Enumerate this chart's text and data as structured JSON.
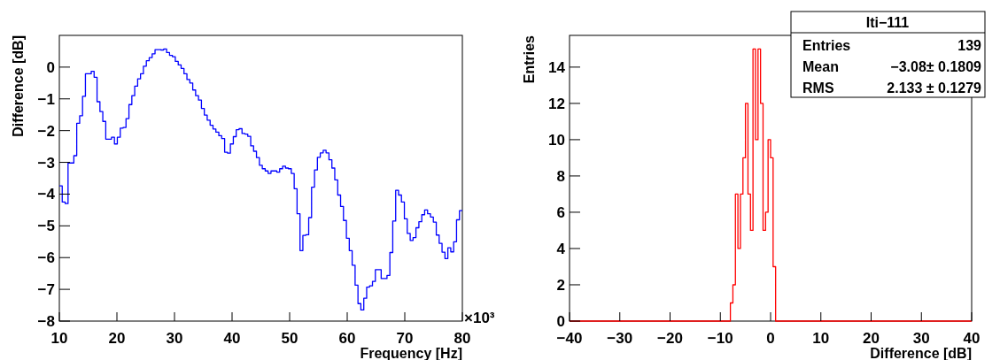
{
  "chart_data": [
    {
      "type": "histogram",
      "color": "#0000ff",
      "xlabel": "Frequency [Hz]",
      "ylabel": "Difference [dB]",
      "annotations": [
        "×10³"
      ],
      "bins": [
        10,
        10.5,
        11.01,
        11.51,
        12.01,
        12.52,
        13.02,
        13.53,
        14.03,
        14.53,
        15.04,
        15.54,
        16.04,
        16.55,
        17.05,
        17.55,
        18.06,
        18.56,
        19.06,
        19.57,
        20.07,
        20.58,
        21.08,
        21.58,
        22.09,
        22.59,
        23.09,
        23.6,
        24.1,
        24.6,
        25.11,
        25.61,
        26.12,
        26.62,
        27.12,
        27.63,
        28.13,
        28.63,
        29.14,
        29.64,
        30.14,
        30.65,
        31.15,
        31.65,
        32.16,
        32.66,
        33.17,
        33.67,
        34.17,
        34.68,
        35.18,
        35.68,
        36.19,
        36.69,
        37.19,
        37.7,
        38.2,
        38.71,
        39.21,
        39.71,
        40.22,
        40.72,
        41.22,
        41.73,
        42.23,
        42.73,
        43.24,
        43.74,
        44.24,
        44.75,
        45.25,
        45.76,
        46.26,
        46.76,
        47.27,
        47.77,
        48.27,
        48.78,
        49.28,
        49.78,
        50.29,
        50.79,
        51.29,
        51.8,
        52.3,
        52.81,
        53.31,
        53.81,
        54.32,
        54.82,
        55.32,
        55.83,
        56.33,
        56.83,
        57.34,
        57.84,
        58.35,
        58.85,
        59.35,
        59.86,
        60.36,
        60.86,
        61.37,
        61.87,
        62.37,
        62.88,
        63.38,
        63.88,
        64.39,
        64.89,
        65.4,
        65.9,
        66.4,
        66.91,
        67.41,
        67.91,
        68.42,
        68.92,
        69.42,
        69.93,
        70.43,
        70.94,
        71.44,
        71.94,
        72.45,
        72.95,
        73.45,
        73.96,
        74.46,
        74.96,
        75.47,
        75.97,
        76.47,
        76.98,
        77.48,
        77.99,
        78.49,
        78.99,
        79.5,
        80
      ],
      "values": [
        -3.74,
        -4.25,
        -4.3,
        -3.02,
        -3.02,
        -2.79,
        -1.77,
        -1.53,
        -0.92,
        -0.21,
        -0.21,
        -0.13,
        -0.32,
        -1.09,
        -1.4,
        -1.71,
        -2.27,
        -2.27,
        -2.21,
        -2.42,
        -2.21,
        -1.92,
        -1.9,
        -1.62,
        -1.18,
        -0.9,
        -0.6,
        -0.37,
        -0.21,
        0.03,
        0.2,
        0.3,
        0.42,
        0.55,
        0.55,
        0.54,
        0.57,
        0.46,
        0.37,
        0.33,
        0.18,
        0.07,
        -0.04,
        -0.21,
        -0.39,
        -0.5,
        -0.72,
        -0.9,
        -1.04,
        -1.3,
        -1.51,
        -1.67,
        -1.83,
        -1.95,
        -2.05,
        -2.16,
        -2.25,
        -2.68,
        -2.71,
        -2.42,
        -2.19,
        -1.97,
        -1.94,
        -2.09,
        -2.11,
        -2.18,
        -2.48,
        -2.65,
        -2.85,
        -3.09,
        -3.2,
        -3.27,
        -3.35,
        -3.27,
        -3.27,
        -3.31,
        -3.2,
        -3.12,
        -3.18,
        -3.2,
        -3.35,
        -3.83,
        -4.62,
        -5.78,
        -5.3,
        -5.28,
        -4.74,
        -3.78,
        -3.24,
        -2.84,
        -2.7,
        -2.62,
        -2.7,
        -2.92,
        -3.18,
        -3.55,
        -4.03,
        -4.39,
        -4.83,
        -5.39,
        -5.78,
        -6.24,
        -6.87,
        -7.45,
        -7.65,
        -7.28,
        -6.93,
        -6.89,
        -6.75,
        -6.38,
        -6.38,
        -6.66,
        -6.66,
        -6.56,
        -5.84,
        -4.85,
        -3.88,
        -4.03,
        -4.25,
        -4.78,
        -5.24,
        -5.46,
        -5.37,
        -5.06,
        -4.87,
        -4.65,
        -4.5,
        -4.62,
        -4.72,
        -4.88,
        -5.29,
        -5.55,
        -5.83,
        -6.03,
        -5.69,
        -5.82,
        -5.5,
        -4.81,
        -4.52
      ],
      "xlim": [
        10,
        80
      ],
      "xticks": [
        10,
        20,
        30,
        40,
        50,
        60,
        70,
        80
      ],
      "ylim": [
        -8,
        1
      ],
      "yticks": [
        -8,
        -7,
        -6,
        -5,
        -4,
        -3,
        -2,
        -1,
        0
      ]
    },
    {
      "type": "histogram",
      "color": "#ff0000",
      "title": "Iti−111",
      "xlabel": "Difference [dB]",
      "ylabel": "Entries",
      "annotations": [
        "Entries",
        "139",
        "Mean",
        "−3.08± 0.1809",
        "RMS",
        "2.133 ± 0.1279"
      ],
      "bins": [
        -40,
        -8,
        -7.5,
        -7,
        -6.5,
        -6,
        -5.5,
        -5,
        -4.5,
        -4,
        -3.5,
        -3,
        -2.5,
        -2,
        -1.5,
        -1,
        -0.5,
        0,
        0.5,
        1,
        40
      ],
      "values": [
        0,
        1,
        2,
        7,
        4,
        7,
        9,
        12,
        7,
        5,
        15,
        10,
        15,
        12,
        5,
        6,
        10,
        9,
        3,
        0
      ],
      "xlim": [
        -40,
        40
      ],
      "xticks": [
        -40,
        -30,
        -20,
        -10,
        0,
        10,
        20,
        30,
        40
      ],
      "ylim": [
        0,
        15.75
      ],
      "yticks": [
        0,
        2,
        4,
        6,
        8,
        10,
        12,
        14
      ]
    }
  ]
}
